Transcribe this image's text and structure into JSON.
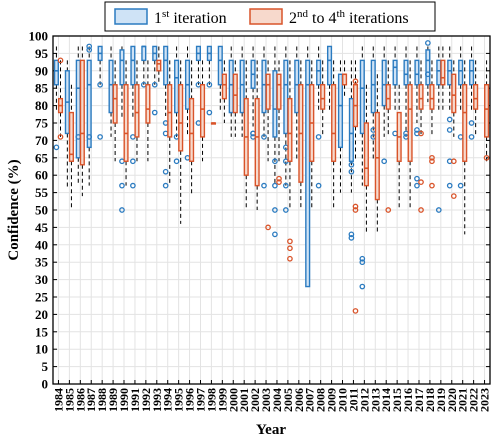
{
  "chart_data": {
    "type": "box",
    "ylabel": "Confidence (%)",
    "xlabel": "Year",
    "ylim": [
      0,
      100
    ],
    "yticks": [
      0,
      5,
      10,
      15,
      20,
      25,
      30,
      35,
      40,
      45,
      50,
      55,
      60,
      65,
      70,
      75,
      80,
      85,
      90,
      95,
      100
    ],
    "grid": true,
    "legend_position": "top",
    "categories": [
      "1984",
      "1985",
      "1986",
      "1987",
      "1988",
      "1989",
      "1990",
      "1991",
      "1992",
      "1993",
      "1994",
      "1995",
      "1996",
      "1997",
      "1998",
      "1999",
      "2000",
      "2001",
      "2002",
      "2003",
      "2004",
      "2005",
      "2006",
      "2007",
      "2008",
      "2009",
      "2010",
      "2011",
      "2012",
      "2013",
      "2014",
      "2015",
      "2016",
      "2017",
      "2018",
      "2019",
      "2020",
      "2021",
      "2022",
      "2023"
    ],
    "series": [
      {
        "key": "first",
        "legend_base": "1",
        "legend_sup": "st",
        "legend_rest": " iteration",
        "color": "#2b7bc0",
        "fill": "#cfe3f6",
        "boxes": [
          {
            "q1": 86,
            "q3": 93,
            "med": 90,
            "lo": 78,
            "hi": 97,
            "out": [
              68
            ]
          },
          {
            "q1": 72,
            "q3": 90,
            "med": 81,
            "lo": 56,
            "hi": 93,
            "out": []
          },
          {
            "q1": 65,
            "q3": 93,
            "med": 85,
            "lo": 57,
            "hi": 97,
            "out": [
              71
            ]
          },
          {
            "q1": 68,
            "q3": 93,
            "med": 86,
            "lo": 57,
            "hi": 97,
            "out": [
              96,
              97,
              71
            ]
          },
          {
            "q1": 93,
            "q3": 97,
            "med": 95,
            "lo": 86,
            "hi": 97,
            "out": [
              86,
              71
            ]
          },
          {
            "q1": 78,
            "q3": 93,
            "med": 86,
            "lo": 71,
            "hi": 97,
            "out": []
          },
          {
            "q1": 86,
            "q3": 96,
            "med": 93,
            "lo": 76,
            "hi": 97,
            "out": [
              64,
              57,
              50
            ]
          },
          {
            "q1": 86,
            "q3": 97,
            "med": 93,
            "lo": 76,
            "hi": 97,
            "out": [
              64,
              57,
              71
            ]
          },
          {
            "q1": 93,
            "q3": 97,
            "med": 97,
            "lo": 86,
            "hi": 97,
            "out": [
              86
            ]
          },
          {
            "q1": 93,
            "q3": 97,
            "med": 95,
            "lo": 86,
            "hi": 97,
            "out": [
              86,
              78
            ]
          },
          {
            "q1": 86,
            "q3": 97,
            "med": 93,
            "lo": 77,
            "hi": 97,
            "out": [
              75,
              72,
              61,
              57
            ]
          },
          {
            "q1": 78,
            "q3": 93,
            "med": 88,
            "lo": 71,
            "hi": 97,
            "out": [
              71,
              64
            ]
          },
          {
            "q1": 79,
            "q3": 93,
            "med": 86,
            "lo": 71,
            "hi": 97,
            "out": [
              65
            ]
          },
          {
            "q1": 93,
            "q3": 97,
            "med": 95,
            "lo": 86,
            "hi": 97,
            "out": [
              86,
              75
            ]
          },
          {
            "q1": 93,
            "q3": 97,
            "med": 95,
            "lo": 86,
            "hi": 97,
            "out": [
              86,
              78
            ]
          },
          {
            "q1": 86,
            "q3": 97,
            "med": 93,
            "lo": 78,
            "hi": 97,
            "out": []
          },
          {
            "q1": 78,
            "q3": 93,
            "med": 86,
            "lo": 71,
            "hi": 97,
            "out": []
          },
          {
            "q1": 78,
            "q3": 93,
            "med": 86,
            "lo": 71,
            "hi": 97,
            "out": []
          },
          {
            "q1": 85,
            "q3": 93,
            "med": 89,
            "lo": 74,
            "hi": 97,
            "out": [
              72,
              71,
              72
            ]
          },
          {
            "q1": 78,
            "q3": 93,
            "med": 86,
            "lo": 71,
            "hi": 97,
            "out": [
              71,
              57
            ]
          },
          {
            "q1": 71,
            "q3": 90,
            "med": 79,
            "lo": 57,
            "hi": 97,
            "out": [
              64,
              57,
              50,
              43
            ]
          },
          {
            "q1": 72,
            "q3": 93,
            "med": 86,
            "lo": 57,
            "hi": 97,
            "out": [
              68,
              64,
              57,
              50
            ]
          },
          {
            "q1": 78,
            "q3": 93,
            "med": 86,
            "lo": 64,
            "hi": 97,
            "out": []
          },
          {
            "q1": 28,
            "q3": 93,
            "med": 86,
            "lo": 28,
            "hi": 97,
            "out": []
          },
          {
            "q1": 86,
            "q3": 93,
            "med": 90,
            "lo": 78,
            "hi": 97,
            "out": [
              71,
              57
            ]
          },
          {
            "q1": 86,
            "q3": 97,
            "med": 93,
            "lo": 78,
            "hi": 97,
            "out": []
          },
          {
            "q1": 68,
            "q3": 89,
            "med": 80,
            "lo": 55,
            "hi": 93,
            "out": []
          },
          {
            "q1": 64,
            "q3": 82,
            "med": 72,
            "lo": 55,
            "hi": 93,
            "out": [
              63,
              61,
              43,
              42
            ]
          },
          {
            "q1": 72,
            "q3": 93,
            "med": 85,
            "lo": 57,
            "hi": 97,
            "out": [
              36,
              35,
              28
            ]
          },
          {
            "q1": 78,
            "q3": 93,
            "med": 86,
            "lo": 64,
            "hi": 97,
            "out": [
              73,
              71
            ]
          },
          {
            "q1": 80,
            "q3": 93,
            "med": 86,
            "lo": 71,
            "hi": 97,
            "out": [
              64
            ]
          },
          {
            "q1": 86,
            "q3": 93,
            "med": 91,
            "lo": 78,
            "hi": 97,
            "out": [
              72
            ]
          },
          {
            "q1": 86,
            "q3": 93,
            "med": 89,
            "lo": 71,
            "hi": 97,
            "out": [
              72,
              71
            ]
          },
          {
            "q1": 86,
            "q3": 93,
            "med": 89,
            "lo": 75,
            "hi": 97,
            "out": [
              73,
              72,
              59,
              57
            ]
          },
          {
            "q1": 86,
            "q3": 96,
            "med": 93,
            "lo": 81,
            "hi": 97,
            "out": [
              98,
              89
            ]
          },
          {
            "q1": 86,
            "q3": 93,
            "med": 90,
            "lo": 78,
            "hi": 97,
            "out": [
              50
            ]
          },
          {
            "q1": 86,
            "q3": 93,
            "med": 90,
            "lo": 78,
            "hi": 97,
            "out": [
              76,
              73,
              64,
              57
            ]
          },
          {
            "q1": 86,
            "q3": 93,
            "med": 90,
            "lo": 78,
            "hi": 97,
            "out": [
              71,
              57
            ]
          },
          {
            "q1": 86,
            "q3": 93,
            "med": 90,
            "lo": 78,
            "hi": 97,
            "out": [
              75,
              71
            ]
          },
          null
        ]
      },
      {
        "key": "rest",
        "legend_base": "2",
        "legend_sup": "nd",
        "legend_rest": " to 4",
        "legend_sup2": "th",
        "legend_rest2": " iterations",
        "color": "#d9542a",
        "fill": "#f7d9cc",
        "boxes": [
          {
            "q1": 78,
            "q3": 82,
            "med": 80,
            "lo": 71,
            "hi": 93,
            "out": [
              93,
              71
            ]
          },
          {
            "q1": 64,
            "q3": 78,
            "med": 66,
            "lo": 50,
            "hi": 86,
            "out": []
          },
          {
            "q1": 63,
            "q3": 93,
            "med": 72,
            "lo": 54,
            "hi": 97,
            "out": []
          },
          null,
          null,
          {
            "q1": 75,
            "q3": 86,
            "med": 82,
            "lo": 64,
            "hi": 93,
            "out": []
          },
          {
            "q1": 64,
            "q3": 86,
            "med": 72,
            "lo": 57,
            "hi": 93,
            "out": []
          },
          {
            "q1": 71,
            "q3": 86,
            "med": 78,
            "lo": 64,
            "hi": 93,
            "out": []
          },
          {
            "q1": 75,
            "q3": 86,
            "med": 79,
            "lo": 64,
            "hi": 93,
            "out": []
          },
          {
            "q1": 90,
            "q3": 93,
            "med": 92,
            "lo": 86,
            "hi": 97,
            "out": []
          },
          {
            "q1": 71,
            "q3": 86,
            "med": 78,
            "lo": 57,
            "hi": 93,
            "out": []
          },
          {
            "q1": 67,
            "q3": 86,
            "med": 75,
            "lo": 46,
            "hi": 93,
            "out": []
          },
          {
            "q1": 64,
            "q3": 82,
            "med": 72,
            "lo": 54,
            "hi": 93,
            "out": []
          },
          {
            "q1": 71,
            "q3": 86,
            "med": 79,
            "lo": 64,
            "hi": 93,
            "out": []
          },
          {
            "q1": 75,
            "q3": 75,
            "med": 75,
            "lo": 75,
            "hi": 75,
            "out": []
          },
          {
            "q1": 82,
            "q3": 89,
            "med": 86,
            "lo": 75,
            "hi": 93,
            "out": []
          },
          {
            "q1": 78,
            "q3": 89,
            "med": 83,
            "lo": 71,
            "hi": 93,
            "out": []
          },
          {
            "q1": 60,
            "q3": 82,
            "med": 71,
            "lo": 50,
            "hi": 93,
            "out": []
          },
          {
            "q1": 57,
            "q3": 82,
            "med": 71,
            "lo": 50,
            "hi": 93,
            "out": []
          },
          {
            "q1": 79,
            "q3": 89,
            "med": 86,
            "lo": 64,
            "hi": 93,
            "out": [
              45
            ]
          },
          {
            "q1": 79,
            "q3": 89,
            "med": 86,
            "lo": 64,
            "hi": 93,
            "out": [
              59,
              58
            ]
          },
          {
            "q1": 64,
            "q3": 82,
            "med": 72,
            "lo": 50,
            "hi": 93,
            "out": [
              41,
              39,
              36
            ]
          },
          {
            "q1": 58,
            "q3": 86,
            "med": 72,
            "lo": 50,
            "hi": 93,
            "out": []
          },
          {
            "q1": 64,
            "q3": 86,
            "med": 75,
            "lo": 50,
            "hi": 93,
            "out": []
          },
          {
            "q1": 79,
            "q3": 86,
            "med": 82,
            "lo": 71,
            "hi": 93,
            "out": []
          },
          {
            "q1": 64,
            "q3": 86,
            "med": 72,
            "lo": 50,
            "hi": 93,
            "out": []
          },
          {
            "q1": 86,
            "q3": 89,
            "med": 89,
            "lo": 82,
            "hi": 93,
            "out": []
          },
          {
            "q1": 74,
            "q3": 86,
            "med": 80,
            "lo": 64,
            "hi": 93,
            "out": [
              87,
              51,
              50,
              21
            ]
          },
          {
            "q1": 57,
            "q3": 75,
            "med": 62,
            "lo": 43,
            "hi": 86,
            "out": []
          },
          {
            "q1": 53,
            "q3": 78,
            "med": 65,
            "lo": 43,
            "hi": 89,
            "out": []
          },
          {
            "q1": 79,
            "q3": 86,
            "med": 82,
            "lo": 71,
            "hi": 93,
            "out": [
              50
            ]
          },
          {
            "q1": 64,
            "q3": 78,
            "med": 71,
            "lo": 50,
            "hi": 86,
            "out": []
          },
          {
            "q1": 64,
            "q3": 86,
            "med": 79,
            "lo": 50,
            "hi": 93,
            "out": []
          },
          {
            "q1": 79,
            "q3": 86,
            "med": 82,
            "lo": 71,
            "hi": 93,
            "out": [
              72,
              58,
              50
            ]
          },
          {
            "q1": 79,
            "q3": 86,
            "med": 82,
            "lo": 71,
            "hi": 93,
            "out": [
              65,
              64,
              57
            ]
          },
          {
            "q1": 86,
            "q3": 93,
            "med": 88,
            "lo": 78,
            "hi": 97,
            "out": []
          },
          {
            "q1": 78,
            "q3": 89,
            "med": 83,
            "lo": 71,
            "hi": 93,
            "out": [
              64,
              54
            ]
          },
          {
            "q1": 64,
            "q3": 86,
            "med": 78,
            "lo": 43,
            "hi": 93,
            "out": []
          },
          {
            "q1": 79,
            "q3": 86,
            "med": 82,
            "lo": 71,
            "hi": 93,
            "out": []
          },
          {
            "q1": 71,
            "q3": 86,
            "med": 79,
            "lo": 64,
            "hi": 93,
            "out": [
              65
            ]
          }
        ]
      }
    ]
  }
}
